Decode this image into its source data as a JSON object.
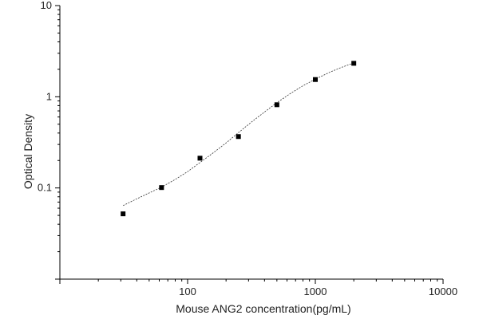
{
  "chart_data": {
    "type": "scatter",
    "xlabel": "Mouse ANG2 concentration(pg/mL)",
    "ylabel": "Optical Density",
    "xscale": "log",
    "yscale": "log",
    "xlim": [
      10,
      10000
    ],
    "ylim": [
      0.01,
      10
    ],
    "x_tick_labels": [
      "100",
      "1000",
      "10000"
    ],
    "y_tick_labels": [
      "0.1",
      "1",
      "10"
    ],
    "grid": false,
    "series": [
      {
        "points": [
          {
            "x": 31.25,
            "y": 0.052
          },
          {
            "x": 62.5,
            "y": 0.101
          },
          {
            "x": 125,
            "y": 0.212
          },
          {
            "x": 250,
            "y": 0.366
          },
          {
            "x": 500,
            "y": 0.818
          },
          {
            "x": 1000,
            "y": 1.545
          },
          {
            "x": 2000,
            "y": 2.328
          }
        ]
      }
    ],
    "fit_curve": [
      {
        "x": 31.25,
        "y": 0.064
      },
      {
        "x": 40,
        "y": 0.076
      },
      {
        "x": 50,
        "y": 0.088
      },
      {
        "x": 62.5,
        "y": 0.102
      },
      {
        "x": 80,
        "y": 0.124
      },
      {
        "x": 100,
        "y": 0.151
      },
      {
        "x": 125,
        "y": 0.19
      },
      {
        "x": 160,
        "y": 0.245
      },
      {
        "x": 200,
        "y": 0.312
      },
      {
        "x": 250,
        "y": 0.404
      },
      {
        "x": 320,
        "y": 0.535
      },
      {
        "x": 400,
        "y": 0.68
      },
      {
        "x": 500,
        "y": 0.86
      },
      {
        "x": 640,
        "y": 1.09
      },
      {
        "x": 800,
        "y": 1.32
      },
      {
        "x": 1000,
        "y": 1.56
      },
      {
        "x": 1300,
        "y": 1.86
      },
      {
        "x": 1600,
        "y": 2.1
      },
      {
        "x": 2000,
        "y": 2.35
      }
    ]
  }
}
